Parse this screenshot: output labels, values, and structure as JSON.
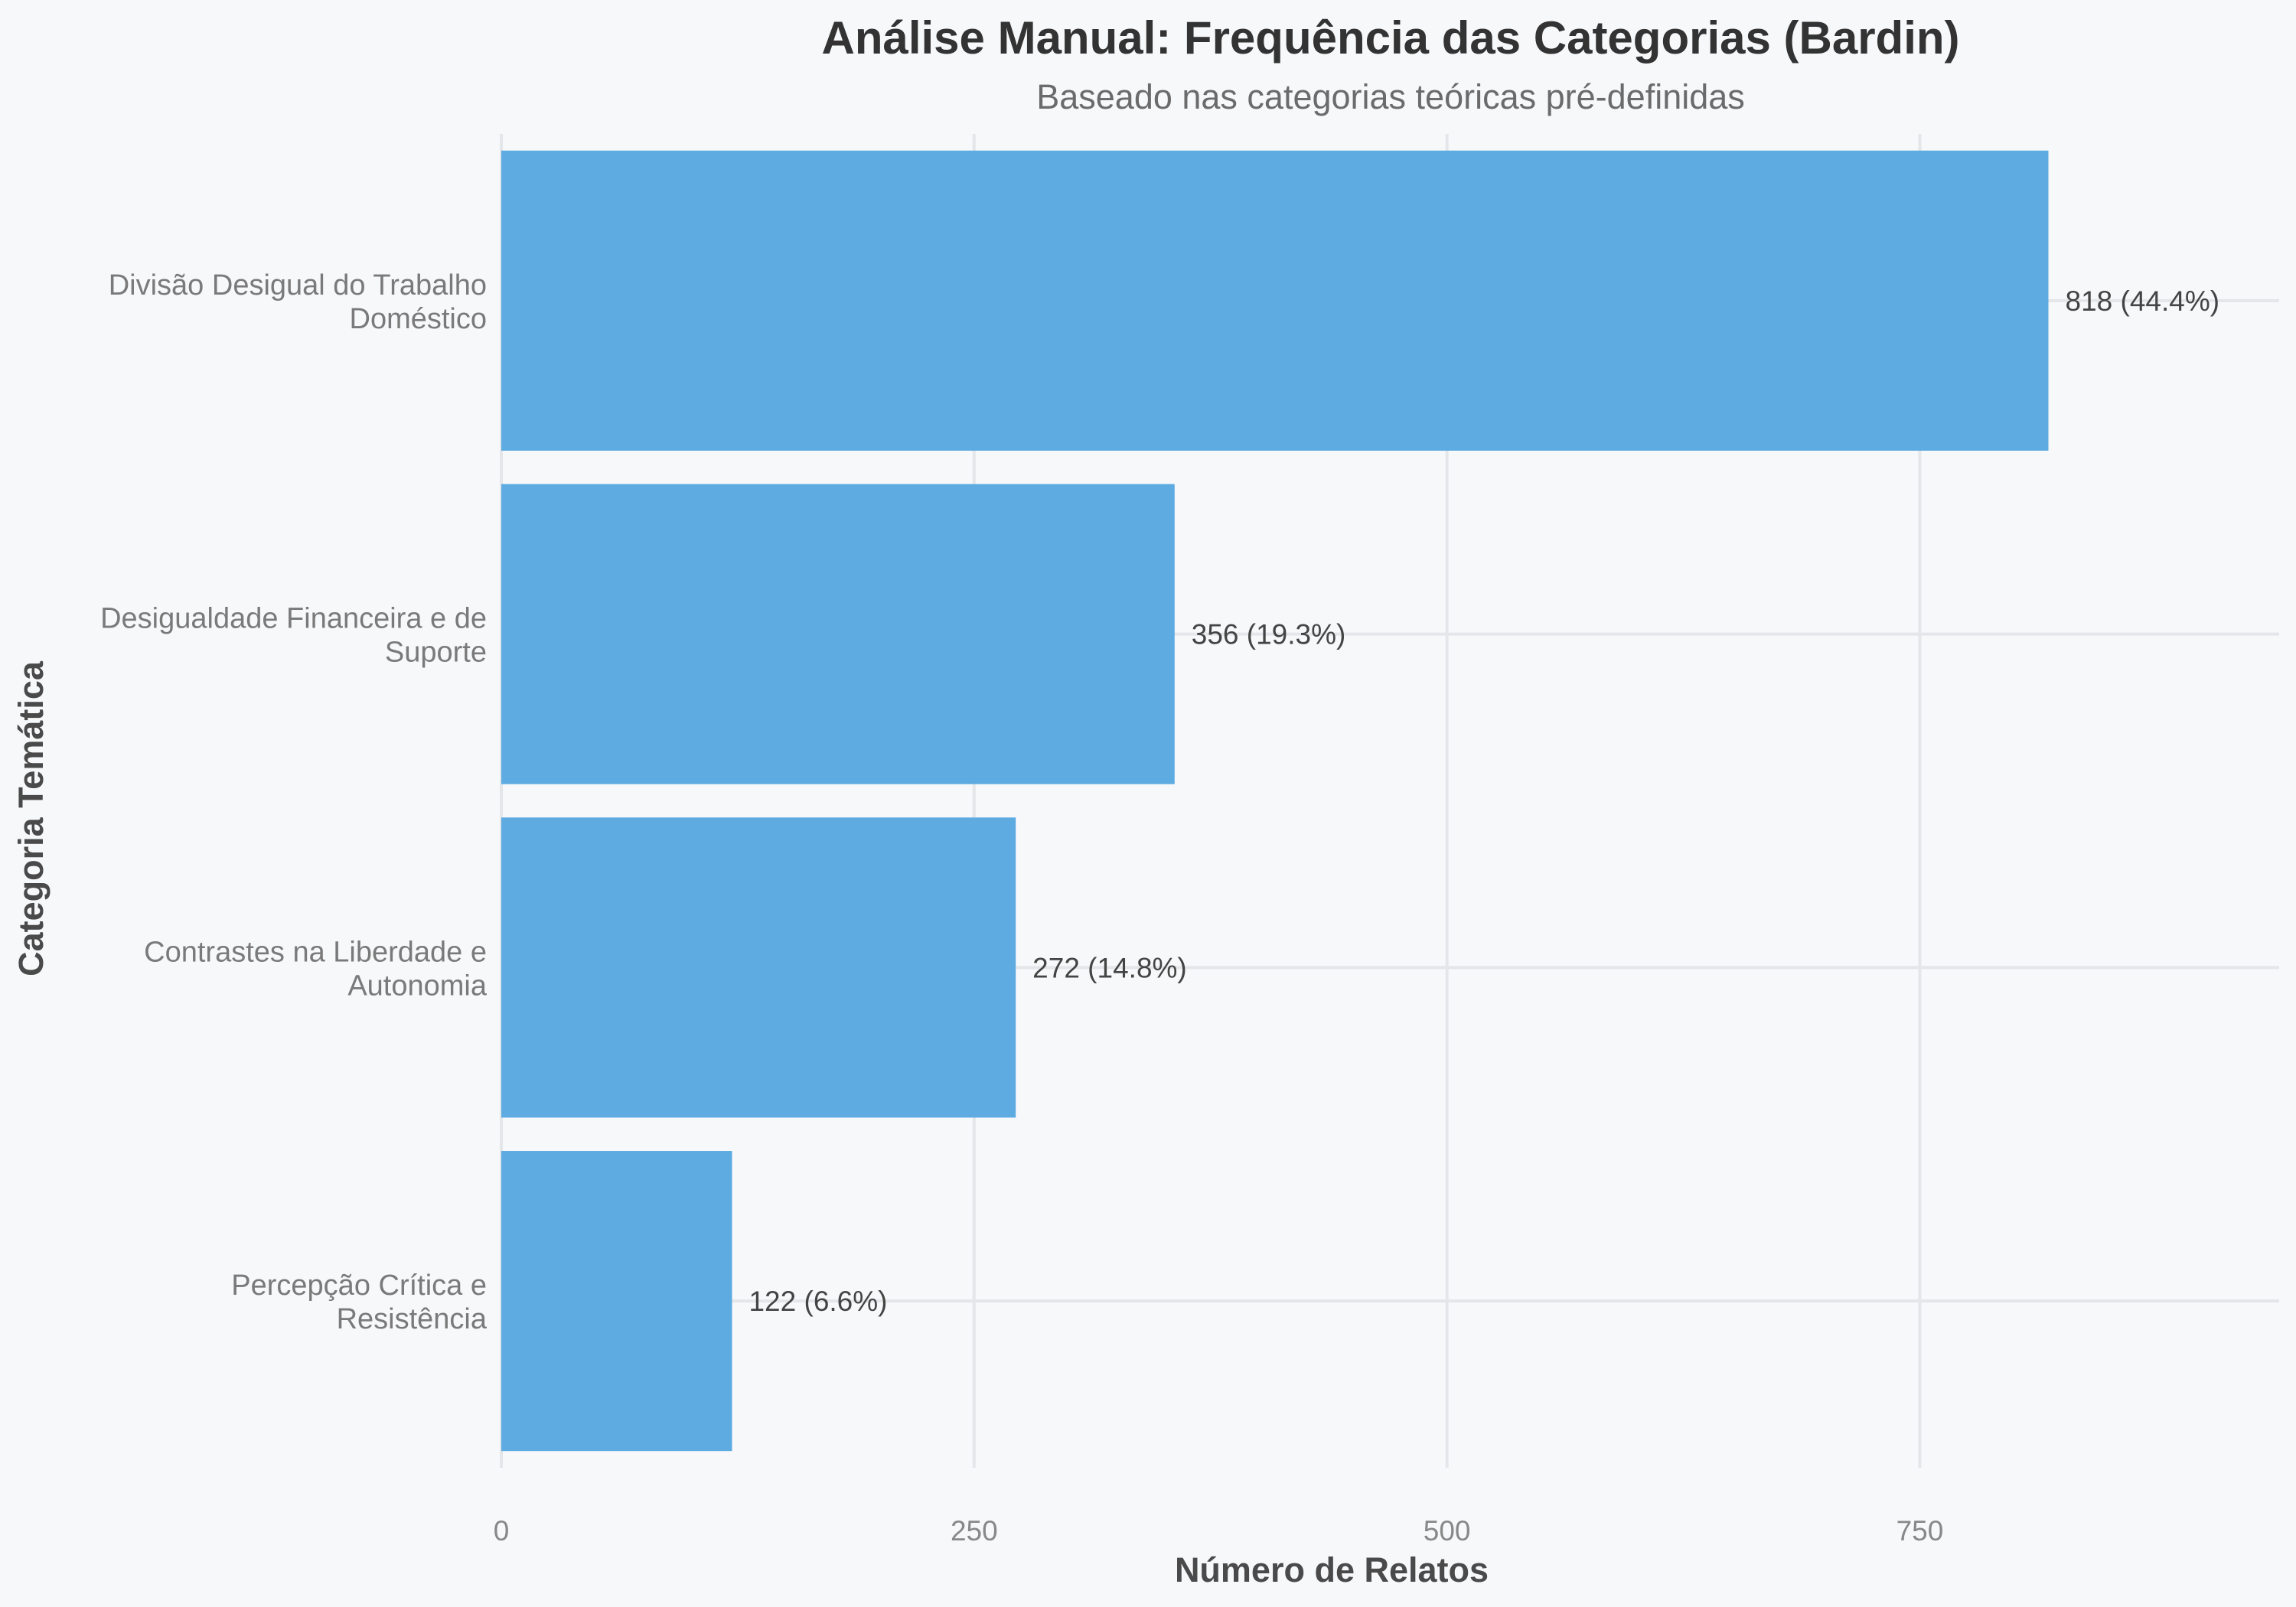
{
  "chart_data": {
    "type": "bar",
    "orientation": "horizontal",
    "title": "Análise Manual: Frequência das Categorias (Bardin)",
    "subtitle": "Baseado nas categorias teóricas pré-definidas",
    "xlabel": "Número de Relatos",
    "ylabel": "Categoria Temática",
    "categories": [
      [
        "Divisão Desigual do Trabalho",
        "Doméstico"
      ],
      [
        "Desigualdade Financeira e de",
        "Suporte"
      ],
      [
        "Contrastes na Liberdade e",
        "Autonomia"
      ],
      [
        "Percepção Crítica e",
        "Resistência"
      ]
    ],
    "values": [
      818,
      356,
      272,
      122
    ],
    "data_labels": [
      "818 (44.4%)",
      "356 (19.3%)",
      "272 (14.8%)",
      "122 (6.6%)"
    ],
    "xlim": [
      0,
      940
    ],
    "xticks": [
      0,
      250,
      500,
      750
    ],
    "xtick_labels": [
      "0",
      "250",
      "500",
      "750"
    ],
    "grid": true,
    "bar_color": "#5dabe1",
    "background_color": "#f7f8fa"
  }
}
